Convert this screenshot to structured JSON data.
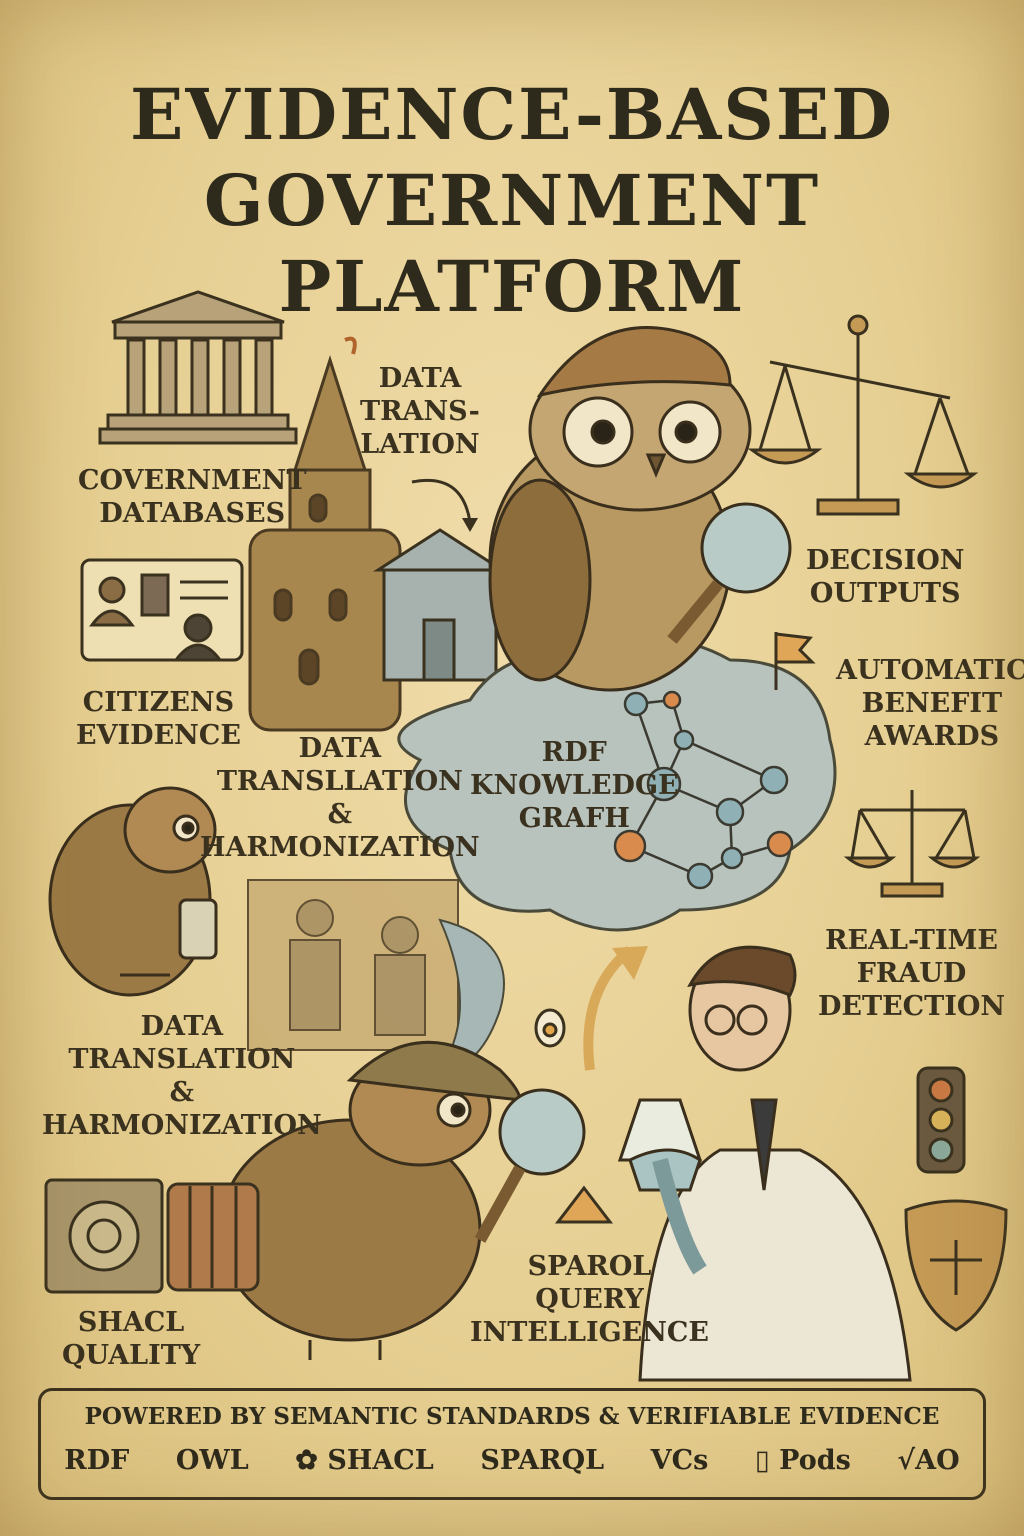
{
  "title": {
    "line1": "EVIDENCE-BASED",
    "line2": "GOVERNMENT",
    "line3": "PLATFORM"
  },
  "labels": {
    "data_translation_top": [
      "DATA",
      "TRANS-",
      "LATION"
    ],
    "government_databases": [
      "COVERNMENT",
      "DATABASES"
    ],
    "citizens_evidence": [
      "CITIZENS",
      "EVIDENCE"
    ],
    "data_translation_mid": [
      "DATA",
      "TRANSLLATION",
      "&",
      "HARMONIZATION"
    ],
    "rdf_graph": [
      "RDF",
      "KNOWLEDGE",
      "GRAFH"
    ],
    "decision_outputs": [
      "DECISION",
      "OUTPUTS"
    ],
    "automatic_benefit": [
      "AUTOMATIC",
      "BENEFIT",
      "AWARDS"
    ],
    "fraud_detection": [
      "REAL-TIME",
      "FRAUD",
      "DETECTION"
    ],
    "data_translation_low": [
      "DATA",
      "TRANSLATION",
      "&",
      "HARMONIZATION"
    ],
    "shacl_quality": [
      "SHACL",
      "QUALITY"
    ],
    "sparql_query": [
      "SPAROL",
      "QUERY",
      "INTELLIGENCE"
    ]
  },
  "footer": {
    "tagline": "POWERED BY SEMANTIC STANDARDS & VERIFIABLE EVIDENCE",
    "standards": [
      {
        "label": "RDF",
        "icon": ""
      },
      {
        "label": "OWL",
        "icon": ""
      },
      {
        "label": "SHACL",
        "icon": "gear-flower-icon"
      },
      {
        "label": "SPARQL",
        "icon": ""
      },
      {
        "label": "VCs",
        "icon": ""
      },
      {
        "label": "Pods",
        "icon": "document-icon"
      },
      {
        "label": "√AO",
        "icon": ""
      }
    ]
  },
  "colors": {
    "paper": "#e9d49c",
    "ink": "#2e2a1c",
    "owl_brown": "#9c7a45",
    "cloud_blue": "#b9c3bd",
    "node_blue": "#8fb0b4",
    "node_orange": "#d98b4e",
    "brass": "#c49a55"
  }
}
